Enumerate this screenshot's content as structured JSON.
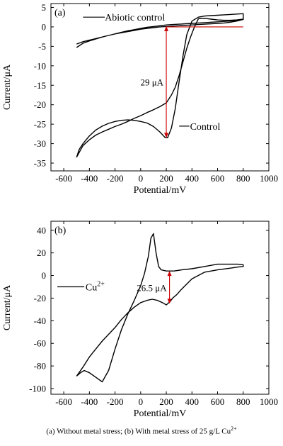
{
  "figure_caption": "(a) Without metal stress; (b) With metal stress of 25 g/L Cu",
  "figure_caption_superscript": "2+",
  "chart_data": [
    {
      "type": "line",
      "panel_label": "(a)",
      "xlabel": "Potential/mV",
      "ylabel": "Current/μA",
      "xlim": [
        -700,
        1000
      ],
      "ylim": [
        -37,
        6
      ],
      "xticks": [
        -600,
        -400,
        -200,
        0,
        200,
        400,
        600,
        800,
        1000
      ],
      "yticks": [
        5,
        0,
        -5,
        -10,
        -15,
        -20,
        -25,
        -30,
        -35
      ],
      "grid": false,
      "series": [
        {
          "name": "Abiotic control",
          "color": "#000000",
          "x": [
            -500,
            -450,
            -400,
            -350,
            -300,
            -250,
            -200,
            -150,
            -100,
            -50,
            0,
            50,
            100,
            150,
            200,
            250,
            300,
            350,
            400,
            450,
            500,
            550,
            600,
            650,
            700,
            750,
            800,
            750,
            700,
            650,
            600,
            550,
            500,
            450,
            400,
            350,
            300,
            250,
            200,
            150,
            100,
            50,
            0,
            -50,
            -100,
            -150,
            -200,
            -250,
            -300,
            -350,
            -400,
            -450,
            -500
          ],
          "y": [
            -5.3,
            -4.2,
            -3.6,
            -3.1,
            -2.6,
            -2.2,
            -1.8,
            -1.5,
            -1.2,
            -0.9,
            -0.6,
            -0.4,
            -0.2,
            0.0,
            0.1,
            0.2,
            0.3,
            0.4,
            0.5,
            0.6,
            0.7,
            0.8,
            0.9,
            1.0,
            1.2,
            1.5,
            1.9,
            1.7,
            1.5,
            1.4,
            1.3,
            1.2,
            1.1,
            1.0,
            0.9,
            0.8,
            0.7,
            0.6,
            0.5,
            0.3,
            0.1,
            -0.1,
            -0.4,
            -0.7,
            -1.0,
            -1.4,
            -1.8,
            -2.2,
            -2.6,
            -3.0,
            -3.4,
            -3.8,
            -4.4
          ]
        },
        {
          "name": "Control",
          "color": "#000000",
          "x": [
            -500,
            -480,
            -450,
            -400,
            -350,
            -300,
            -250,
            -200,
            -150,
            -100,
            -50,
            0,
            50,
            100,
            150,
            190,
            210,
            240,
            270,
            300,
            330,
            360,
            400,
            450,
            500,
            550,
            600,
            650,
            700,
            750,
            800,
            800,
            750,
            700,
            650,
            600,
            550,
            500,
            450,
            420,
            390,
            360,
            330,
            300,
            270,
            240,
            200,
            150,
            100,
            50,
            0,
            -50,
            -100,
            -150,
            -200,
            -250,
            -300,
            -350,
            -400,
            -450,
            -500
          ],
          "y": [
            -33.5,
            -31.5,
            -30.0,
            -28.0,
            -26.5,
            -25.5,
            -24.8,
            -24.3,
            -24.0,
            -23.9,
            -24.0,
            -24.3,
            -24.7,
            -25.6,
            -27.0,
            -28.4,
            -28.5,
            -26.0,
            -21.0,
            -14.0,
            -7.5,
            -2.0,
            1.5,
            2.5,
            2.8,
            2.9,
            3.0,
            3.1,
            3.2,
            3.3,
            3.4,
            2.0,
            1.8,
            1.7,
            1.7,
            1.8,
            2.0,
            2.2,
            2.1,
            0.0,
            -2.5,
            -5.5,
            -9.0,
            -12.5,
            -15.5,
            -17.5,
            -19.5,
            -20.5,
            -21.3,
            -22.0,
            -22.8,
            -23.5,
            -24.3,
            -25.0,
            -25.6,
            -26.3,
            -27.0,
            -27.8,
            -29.0,
            -30.5,
            -33.5
          ]
        }
      ],
      "baseline": {
        "color": "#cc0000",
        "x": [
          200,
          800
        ],
        "y": 0
      },
      "arrow": {
        "color": "#cc0000",
        "x": 200,
        "y_from": 0.2,
        "y_to": -28.5,
        "label": "29 μA"
      },
      "legend_labels": [
        {
          "text": "Abiotic control",
          "line_x": [
            -450,
            -280
          ],
          "at": [
            -280,
            2.5
          ]
        },
        {
          "text": "Control",
          "line_x": [
            300,
            380
          ],
          "at": [
            385,
            -25.5
          ]
        }
      ]
    },
    {
      "type": "line",
      "panel_label": "(b)",
      "xlabel": "Potential/mV",
      "ylabel": "Current/μA",
      "xlim": [
        -700,
        1000
      ],
      "ylim": [
        -105,
        48
      ],
      "xticks": [
        -600,
        -400,
        -200,
        0,
        200,
        400,
        600,
        800,
        1000
      ],
      "yticks": [
        40,
        20,
        0,
        -20,
        -40,
        -60,
        -80,
        -100
      ],
      "grid": false,
      "series": [
        {
          "name": "Cu²⁺",
          "color": "#000000",
          "x": [
            -500,
            -470,
            -440,
            -400,
            -350,
            -300,
            -250,
            -200,
            -150,
            -100,
            -50,
            0,
            30,
            60,
            80,
            100,
            120,
            140,
            160,
            200,
            260,
            320,
            400,
            500,
            600,
            700,
            760,
            800,
            800,
            760,
            700,
            600,
            500,
            400,
            320,
            280,
            250,
            230,
            210,
            200,
            170,
            130,
            90,
            50,
            0,
            -50,
            -100,
            -150,
            -200,
            -250,
            -300,
            -350,
            -400,
            -450,
            -500
          ],
          "y": [
            -89,
            -86,
            -84,
            -86,
            -90,
            -94,
            -84,
            -65,
            -48,
            -34,
            -22,
            -9,
            2,
            17,
            33,
            37,
            20,
            8,
            5,
            4,
            4,
            5,
            6,
            8,
            10,
            10,
            10,
            9.5,
            8,
            7.5,
            6.5,
            5,
            3,
            -3,
            -12,
            -17,
            -20,
            -23,
            -25,
            -26,
            -24,
            -22,
            -21,
            -22,
            -24,
            -28,
            -33,
            -39,
            -46,
            -52,
            -58,
            -65,
            -72,
            -81,
            -89
          ]
        }
      ],
      "arrow": {
        "color": "#cc0000",
        "x": 225,
        "y_from": 4,
        "y_to": -25,
        "label": "26.5 μA"
      },
      "legend_labels": [
        {
          "text": "Cu",
          "sup": "2+",
          "line_x": [
            -650,
            -440
          ],
          "at": [
            -430,
            -10
          ]
        }
      ]
    }
  ]
}
